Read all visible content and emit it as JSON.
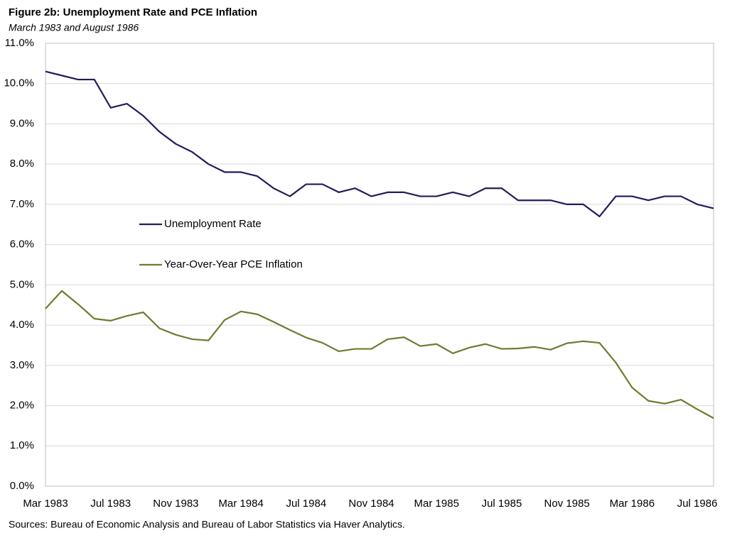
{
  "chart_data": {
    "type": "line",
    "title": "Figure 2b: Unemployment Rate and PCE Inflation",
    "subtitle": "March 1983  and August 1986",
    "source": "Sources: Bureau of Economic Analysis and Bureau of Labor Statistics via Haver Analytics.",
    "categories": [
      "Mar 1983",
      null,
      null,
      null,
      "Jul 1983",
      null,
      null,
      null,
      "Nov 1983",
      null,
      null,
      null,
      "Mar 1984",
      null,
      null,
      null,
      "Jul 1984",
      null,
      null,
      null,
      "Nov 1984",
      null,
      null,
      null,
      "Mar 1985",
      null,
      null,
      null,
      "Jul 1985",
      null,
      null,
      null,
      "Nov 1985",
      null,
      null,
      null,
      "Mar 1986",
      null,
      null,
      null,
      "Jul 1986",
      null
    ],
    "series": [
      {
        "name": "Unemployment Rate",
        "color": "#211c5c",
        "values": [
          10.3,
          10.2,
          10.1,
          10.1,
          9.4,
          9.5,
          9.2,
          8.8,
          8.5,
          8.3,
          8.0,
          7.8,
          7.8,
          7.7,
          7.4,
          7.2,
          7.5,
          7.5,
          7.3,
          7.4,
          7.2,
          7.3,
          7.3,
          7.2,
          7.2,
          7.3,
          7.2,
          7.4,
          7.4,
          7.1,
          7.1,
          7.1,
          7.0,
          7.0,
          6.7,
          7.2,
          7.2,
          7.1,
          7.2,
          7.2,
          7.0,
          6.9
        ]
      },
      {
        "name": "Year-Over-Year PCE Inflation",
        "color": "#6b7d2f",
        "values": [
          4.41,
          4.85,
          4.52,
          4.16,
          4.11,
          4.23,
          4.32,
          3.92,
          3.76,
          3.65,
          3.62,
          4.13,
          4.34,
          4.27,
          4.08,
          3.88,
          3.69,
          3.56,
          3.35,
          3.41,
          3.41,
          3.65,
          3.7,
          3.48,
          3.53,
          3.3,
          3.44,
          3.53,
          3.41,
          3.42,
          3.46,
          3.39,
          3.55,
          3.6,
          3.56,
          3.07,
          2.45,
          2.12,
          2.05,
          2.15,
          1.91,
          1.69
        ]
      }
    ],
    "ylim": [
      0,
      11
    ],
    "yticks": [
      {
        "value": 0,
        "label": "0.0%"
      },
      {
        "value": 1,
        "label": "1.0%"
      },
      {
        "value": 2,
        "label": "2.0%"
      },
      {
        "value": 3,
        "label": "3.0%"
      },
      {
        "value": 4,
        "label": "4.0%"
      },
      {
        "value": 5,
        "label": "5.0%"
      },
      {
        "value": 6,
        "label": "6.0%"
      },
      {
        "value": 7,
        "label": "7.0%"
      },
      {
        "value": 8,
        "label": "8.0%"
      },
      {
        "value": 9,
        "label": "9.0%"
      },
      {
        "value": 10,
        "label": "10.0%"
      },
      {
        "value": 11,
        "label": "11.0%"
      }
    ],
    "grid": true,
    "legend": "center-left"
  }
}
